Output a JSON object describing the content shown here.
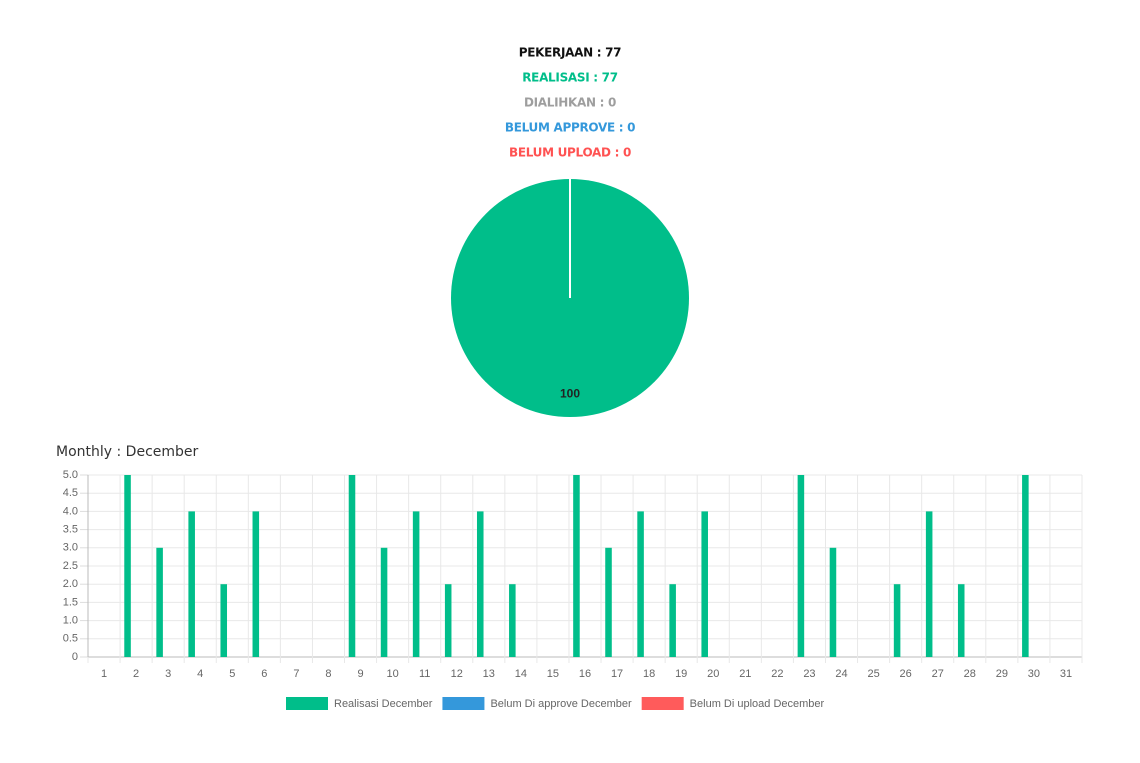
{
  "header": {
    "lines": [
      {
        "text": "PEKERJAAN : 77",
        "color": "#111111"
      },
      {
        "text": "REALISASI : 77",
        "color": "#00be8a"
      },
      {
        "text": "DIALIHKAN : 0",
        "color": "#9e9e9e"
      },
      {
        "text": "BELUM APPROVE : 0",
        "color": "#3498db"
      },
      {
        "text": "BELUM UPLOAD : 0",
        "color": "#ff5252"
      }
    ]
  },
  "chart_data": [
    {
      "type": "pie",
      "values": [
        100
      ],
      "colors": [
        "#00be8a"
      ]
    },
    {
      "type": "bar",
      "title": "Monthly : December",
      "categories": [
        "1",
        "2",
        "3",
        "4",
        "5",
        "6",
        "7",
        "8",
        "9",
        "10",
        "11",
        "12",
        "13",
        "14",
        "15",
        "16",
        "17",
        "18",
        "19",
        "20",
        "21",
        "22",
        "23",
        "24",
        "25",
        "26",
        "27",
        "28",
        "29",
        "30",
        "31"
      ],
      "series": [
        {
          "name": "Realisasi December",
          "color": "#00be8a",
          "values": [
            0,
            5,
            3,
            4,
            2,
            4,
            0,
            0,
            5,
            3,
            4,
            2,
            4,
            2,
            0,
            5,
            3,
            4,
            2,
            4,
            0,
            0,
            5,
            3,
            0,
            2,
            4,
            2,
            0,
            5,
            0
          ]
        },
        {
          "name": "Belum Di approve December",
          "color": "#3498db",
          "values": [
            0,
            0,
            0,
            0,
            0,
            0,
            0,
            0,
            0,
            0,
            0,
            0,
            0,
            0,
            0,
            0,
            0,
            0,
            0,
            0,
            0,
            0,
            0,
            0,
            0,
            0,
            0,
            0,
            0,
            0,
            0
          ]
        },
        {
          "name": "Belum Di upload December",
          "color": "#ff5b5b",
          "values": [
            0,
            0,
            0,
            0,
            0,
            0,
            0,
            0,
            0,
            0,
            0,
            0,
            0,
            0,
            0,
            0,
            0,
            0,
            0,
            0,
            0,
            0,
            0,
            0,
            0,
            0,
            0,
            0,
            0,
            0,
            0
          ]
        }
      ],
      "ylim": [
        0,
        5
      ],
      "yticks": [
        0,
        0.5,
        {
          "value": 1,
          "label": "1.0"
        },
        1.5,
        {
          "value": 2,
          "label": "2.0"
        },
        2.5,
        {
          "value": 3,
          "label": "3.0"
        },
        3.5,
        {
          "value": 4,
          "label": "4.0"
        },
        4.5,
        {
          "value": 5,
          "label": "5.0"
        }
      ],
      "grid": true
    }
  ]
}
